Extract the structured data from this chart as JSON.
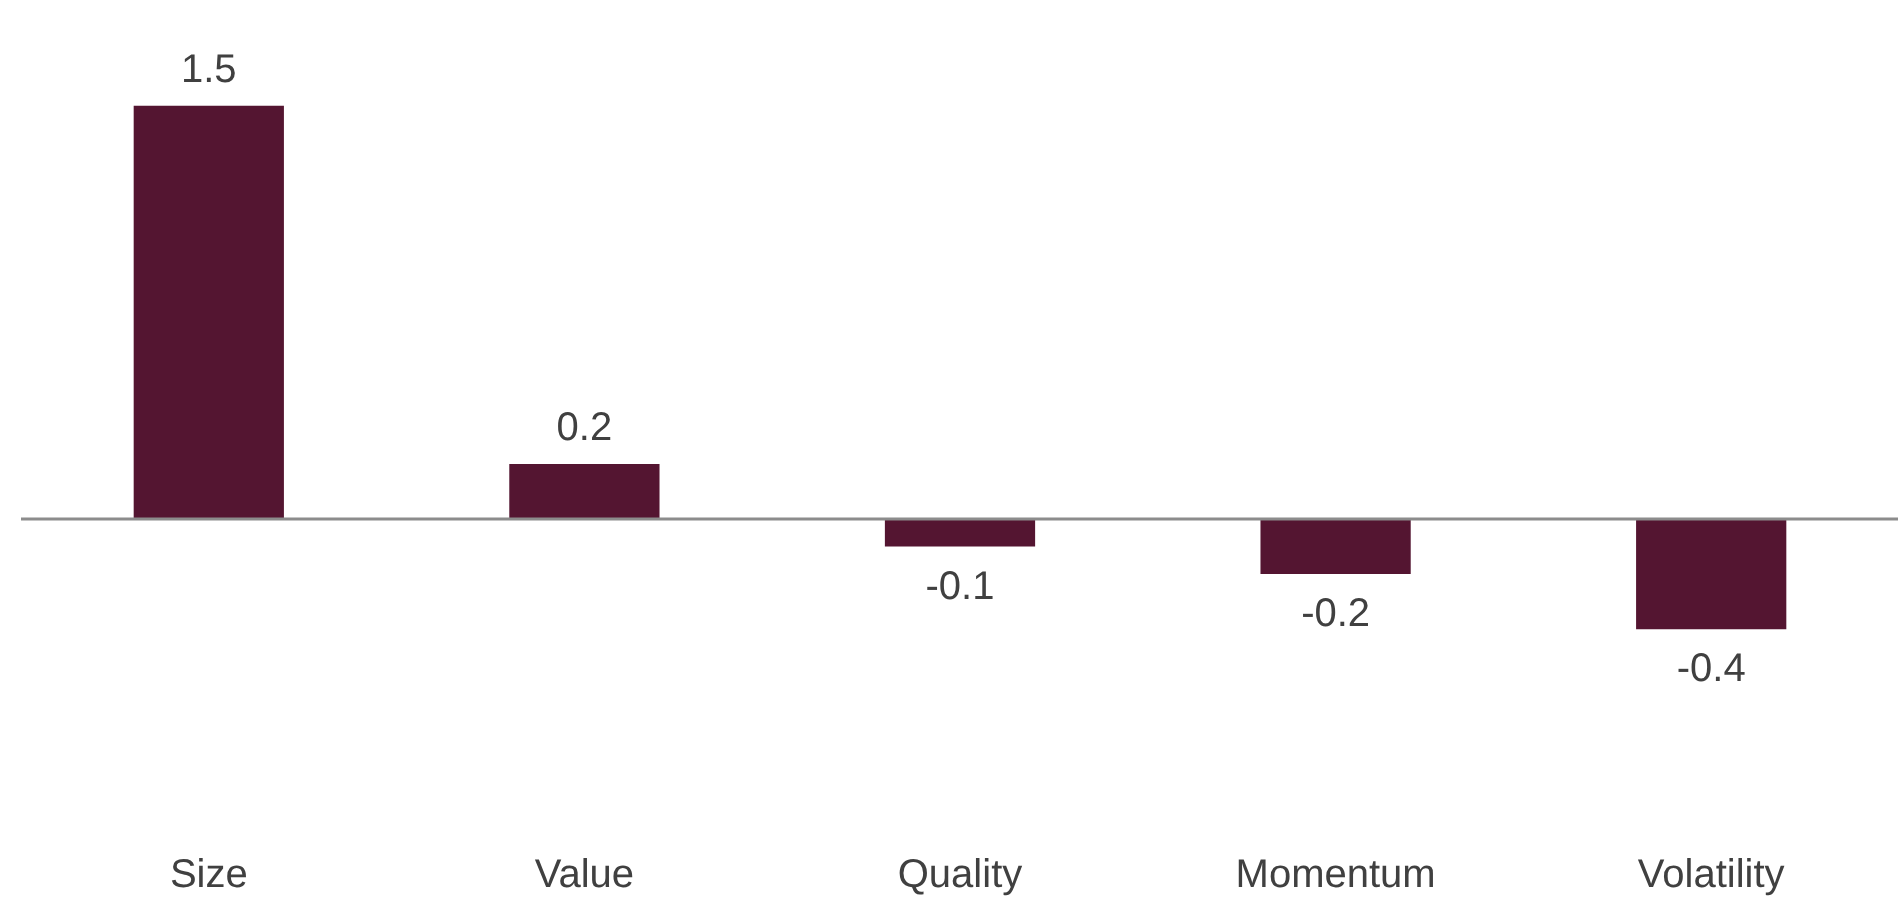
{
  "chart_data": {
    "type": "bar",
    "categories": [
      "Size",
      "Value",
      "Quality",
      "Momentum",
      "Volatility"
    ],
    "values": [
      1.5,
      0.2,
      -0.1,
      -0.2,
      -0.4
    ],
    "color": "#541531",
    "data_labels": true
  }
}
